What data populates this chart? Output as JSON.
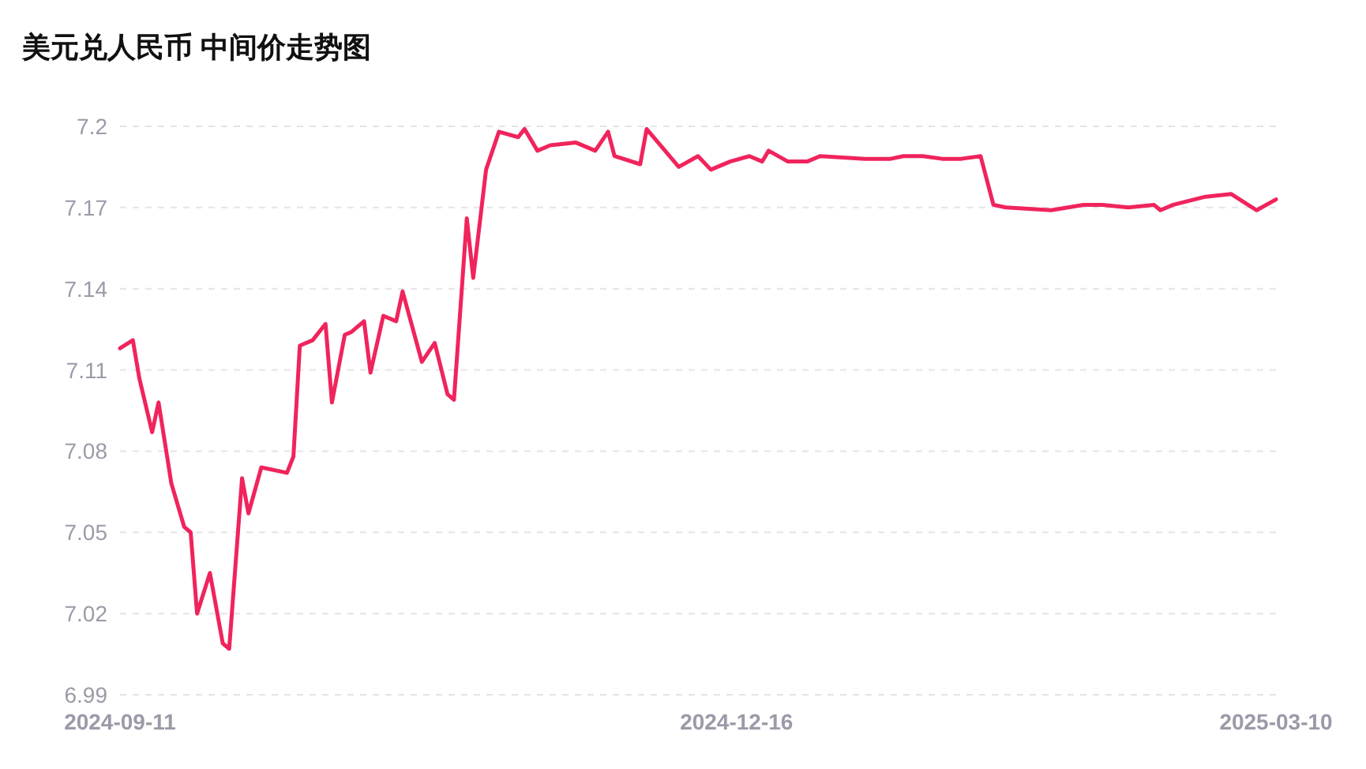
{
  "chart_data": {
    "type": "line",
    "title": "美元兑人民币 中间价走势图",
    "x": [
      "2024-09-11",
      "2024-09-13",
      "2024-09-14",
      "2024-09-16",
      "2024-09-17",
      "2024-09-19",
      "2024-09-21",
      "2024-09-22",
      "2024-09-23",
      "2024-09-25",
      "2024-09-27",
      "2024-09-28",
      "2024-09-30",
      "2024-10-01",
      "2024-10-03",
      "2024-10-07",
      "2024-10-08",
      "2024-10-09",
      "2024-10-11",
      "2024-10-13",
      "2024-10-14",
      "2024-10-16",
      "2024-10-17",
      "2024-10-19",
      "2024-10-20",
      "2024-10-22",
      "2024-10-24",
      "2024-10-25",
      "2024-10-28",
      "2024-10-30",
      "2024-11-01",
      "2024-11-02",
      "2024-11-04",
      "2024-11-05",
      "2024-11-07",
      "2024-11-09",
      "2024-11-12",
      "2024-11-13",
      "2024-11-15",
      "2024-11-17",
      "2024-11-21",
      "2024-11-24",
      "2024-11-26",
      "2024-11-27",
      "2024-12-01",
      "2024-12-02",
      "2024-12-07",
      "2024-12-10",
      "2024-12-12",
      "2024-12-15",
      "2024-12-18",
      "2024-12-20",
      "2024-12-21",
      "2024-12-24",
      "2024-12-27",
      "2024-12-29",
      "2025-01-05",
      "2025-01-09",
      "2025-01-11",
      "2025-01-14",
      "2025-01-17",
      "2025-01-20",
      "2025-01-23",
      "2025-01-25",
      "2025-01-27",
      "2025-02-03",
      "2025-02-08",
      "2025-02-11",
      "2025-02-15",
      "2025-02-19",
      "2025-02-20",
      "2025-02-22",
      "2025-02-27",
      "2025-03-03",
      "2025-03-07",
      "2025-03-10"
    ],
    "series": [
      {
        "color": "#f0245c",
        "values": [
          7.118,
          7.121,
          7.107,
          7.087,
          7.098,
          7.068,
          7.052,
          7.05,
          7.02,
          7.035,
          7.009,
          7.007,
          7.07,
          7.057,
          7.074,
          7.072,
          7.078,
          7.119,
          7.121,
          7.127,
          7.098,
          7.123,
          7.124,
          7.128,
          7.109,
          7.13,
          7.128,
          7.139,
          7.113,
          7.12,
          7.101,
          7.099,
          7.166,
          7.144,
          7.184,
          7.198,
          7.196,
          7.199,
          7.191,
          7.193,
          7.194,
          7.191,
          7.198,
          7.189,
          7.186,
          7.199,
          7.185,
          7.189,
          7.184,
          7.187,
          7.189,
          7.187,
          7.191,
          7.187,
          7.187,
          7.189,
          7.188,
          7.188,
          7.189,
          7.189,
          7.188,
          7.188,
          7.189,
          7.171,
          7.17,
          7.169,
          7.171,
          7.171,
          7.17,
          7.171,
          7.169,
          7.171,
          7.174,
          7.175,
          7.169,
          7.173
        ]
      }
    ],
    "xlim": [
      "2024-09-11",
      "2025-03-10"
    ],
    "xticks": [
      "2024-09-11",
      "2024-12-16",
      "2025-03-10"
    ],
    "ylim": [
      6.99,
      7.2
    ],
    "yticks": [
      6.99,
      7.02,
      7.05,
      7.08,
      7.11,
      7.14,
      7.17,
      7.2
    ],
    "grid": "y",
    "line_style": "solid",
    "marker": "none"
  }
}
